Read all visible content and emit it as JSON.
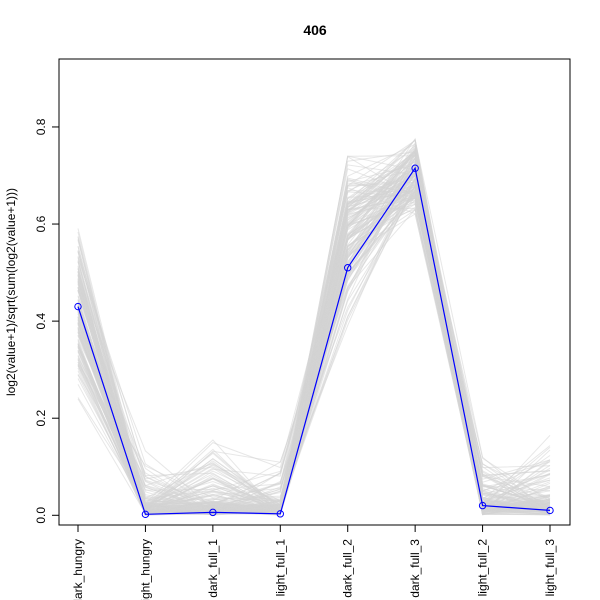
{
  "chart_data": {
    "type": "line",
    "title": "406",
    "xlabel": "",
    "ylabel": "log2(value+1)/sqrt(sum(log2(value+1)))",
    "categories": [
      "dark_hungry",
      "light_hungry",
      "dark_full_1",
      "light_full_1",
      "dark_full_2",
      "dark_full_3",
      "light_full_2",
      "light_full_3"
    ],
    "ylim": [
      -0.02,
      0.94
    ],
    "yticks": [
      0.0,
      0.2,
      0.4,
      0.6,
      0.8
    ],
    "ytick_labels": [
      "0.0",
      "0.2",
      "0.4",
      "0.6",
      "0.8"
    ],
    "grid": false,
    "legend": "none",
    "highlight_series": {
      "values": [
        0.43,
        0.002,
        0.006,
        0.003,
        0.51,
        0.715,
        0.02,
        0.01
      ],
      "color": "#0000ff"
    },
    "background_series_color": "#d3d3d3",
    "background_series_count": 406
  }
}
